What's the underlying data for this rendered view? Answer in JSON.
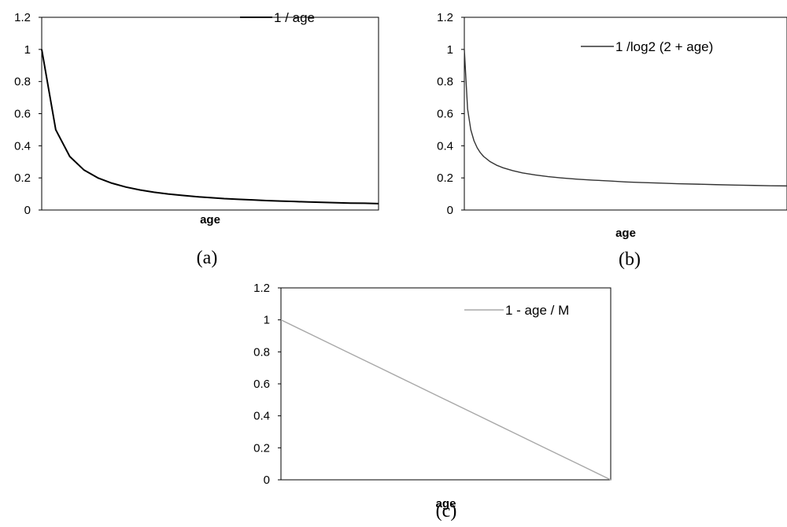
{
  "chart_data": [
    {
      "type": "line",
      "panel": "(a)",
      "xlabel": "age",
      "ylabel": "",
      "ylim": [
        0,
        1.2
      ],
      "yticks": [
        "0",
        "0.2",
        "0.4",
        "0.6",
        "0.8",
        "1",
        "1.2"
      ],
      "x_tick_labels_shown": false,
      "grid": false,
      "legend": "top-right",
      "line_color": "#000000",
      "series": [
        {
          "name": "1 / age",
          "x": [
            1,
            2,
            3,
            4,
            5,
            6,
            7,
            8,
            9,
            10,
            11,
            12,
            13,
            14,
            15,
            16,
            17,
            18,
            19,
            20,
            21,
            22,
            23,
            24,
            25
          ],
          "values": [
            1.0,
            0.5,
            0.333,
            0.25,
            0.2,
            0.167,
            0.143,
            0.125,
            0.111,
            0.1,
            0.091,
            0.083,
            0.077,
            0.071,
            0.067,
            0.063,
            0.059,
            0.056,
            0.053,
            0.05,
            0.048,
            0.045,
            0.043,
            0.042,
            0.04
          ]
        }
      ]
    },
    {
      "type": "line",
      "panel": "(b)",
      "xlabel": "age",
      "ylabel": "",
      "ylim": [
        0,
        1.2
      ],
      "yticks": [
        "0",
        "0.2",
        "0.4",
        "0.6",
        "0.8",
        "1",
        "1.2"
      ],
      "x_tick_labels_shown": false,
      "grid": false,
      "legend": "top-right",
      "line_color": "#333333",
      "series": [
        {
          "name": "1 /log2 (2 + age)",
          "x": [
            0,
            1,
            2,
            3,
            4,
            5,
            6,
            8,
            10,
            12,
            15,
            18,
            22,
            26,
            30,
            35,
            40,
            45,
            50,
            55,
            60,
            66,
            72,
            78,
            84,
            90,
            95,
            100
          ],
          "values": [
            1.0,
            0.631,
            0.5,
            0.431,
            0.387,
            0.356,
            0.333,
            0.301,
            0.279,
            0.263,
            0.245,
            0.231,
            0.218,
            0.208,
            0.2,
            0.192,
            0.186,
            0.181,
            0.175,
            0.171,
            0.168,
            0.164,
            0.161,
            0.158,
            0.155,
            0.153,
            0.151,
            0.15
          ]
        }
      ]
    },
    {
      "type": "line",
      "panel": "(c)",
      "xlabel": "age",
      "ylabel": "",
      "ylim": [
        0,
        1.2
      ],
      "yticks": [
        "0",
        "0.2",
        "0.4",
        "0.6",
        "0.8",
        "1",
        "1.2"
      ],
      "x_tick_labels_shown": false,
      "grid": false,
      "legend": "top-right",
      "line_color": "#a8a8a8",
      "series": [
        {
          "name": "1 - age / M",
          "x": [
            0,
            10,
            20,
            30,
            40,
            50,
            60,
            70,
            80,
            90,
            100
          ],
          "values": [
            1.0,
            0.9,
            0.8,
            0.7,
            0.6,
            0.5,
            0.4,
            0.3,
            0.2,
            0.1,
            0.0
          ]
        }
      ]
    }
  ]
}
